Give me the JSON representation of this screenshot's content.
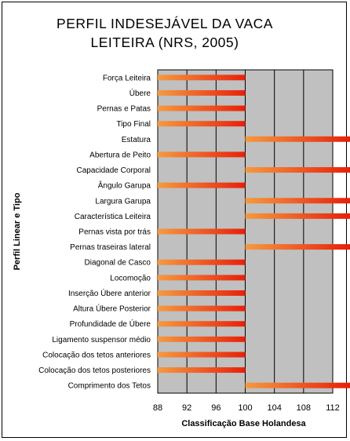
{
  "chart_data": {
    "type": "bar",
    "orientation": "horizontal",
    "title_lines": [
      "PERFIL INDESEJÁVEL DA VACA",
      "LEITEIRA (NRS, 2005)"
    ],
    "xlabel": "Classificação Base Holandesa",
    "ylabel": "Perfil Linear e Tipo",
    "xlim": [
      88,
      112
    ],
    "xticks": [
      "88",
      "92",
      "96",
      "100",
      "104",
      "108",
      "112"
    ],
    "base": 100,
    "grid": true,
    "colors": {
      "plot_bg": "#c0c0c0",
      "bar_dark": "#e8200a",
      "bar_light": "#f59a40"
    },
    "categories": [
      "Força Leiteira",
      "Úbere",
      "Pernas e Patas",
      "Tipo Final",
      "Estatura",
      "Abertura de Peito",
      "Capacidade Corporal",
      "Ângulo Garupa",
      "Largura Garupa",
      "Característica Leiteira",
      "Pernas vista por trás",
      "Pernas traseiras lateral",
      "Diagonal de Casco",
      "Locomoção",
      "Inserção Úbere anterior",
      "Altura Úbere Posterior",
      "Profundidade de Úbere",
      "Ligamento suspensor médio",
      "Colocação dos tetos anteriores",
      "Colocação dos tetos posteriores",
      "Comprimento dos Tetos"
    ],
    "values": [
      88,
      88,
      88,
      88,
      112,
      88,
      112,
      88,
      112,
      112,
      88,
      112,
      88,
      88,
      88,
      88,
      88,
      88,
      88,
      88,
      112
    ]
  }
}
